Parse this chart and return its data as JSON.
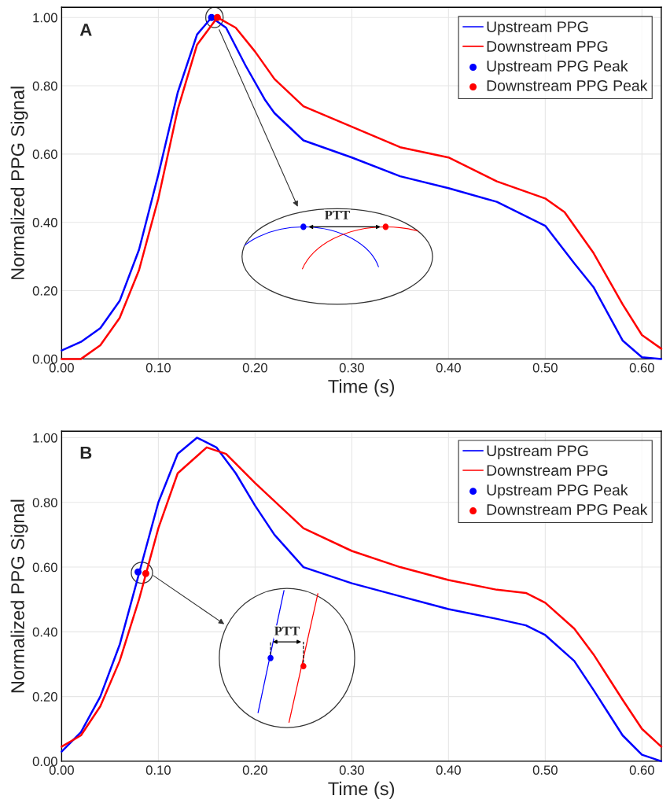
{
  "chart_data": [
    {
      "type": "line",
      "annotations": [
        "A",
        "PTT"
      ],
      "xlabel": "Time (s)",
      "ylabel": "Normalized PPG Signal",
      "xlim": [
        0,
        0.62
      ],
      "ylim": [
        0,
        1.03
      ],
      "xticks": [
        {
          "value": 0,
          "label": "0.00"
        },
        {
          "value": 0.1,
          "label": "0.10"
        },
        {
          "value": 0.2,
          "label": "0.20"
        },
        {
          "value": 0.3,
          "label": "0.30"
        },
        {
          "value": 0.4,
          "label": "0.40"
        },
        {
          "value": 0.5,
          "label": "0.50"
        },
        {
          "value": 0.6,
          "label": "0.60"
        }
      ],
      "yticks": [
        {
          "value": 0,
          "label": "0.00"
        },
        {
          "value": 0.2,
          "label": "0.20"
        },
        {
          "value": 0.4,
          "label": "0.40"
        },
        {
          "value": 0.6,
          "label": "0.60"
        },
        {
          "value": 0.8,
          "label": "0.80"
        },
        {
          "value": 1.0,
          "label": "1.00"
        }
      ],
      "grid": true,
      "legend": "top right",
      "series": [
        {
          "name": "Upstream PPG",
          "color": "#0000ff",
          "x": [
            0,
            0.02,
            0.04,
            0.06,
            0.08,
            0.1,
            0.12,
            0.14,
            0.155,
            0.17,
            0.19,
            0.21,
            0.22,
            0.25,
            0.3,
            0.35,
            0.4,
            0.45,
            0.5,
            0.53,
            0.55,
            0.58,
            0.6,
            0.62
          ],
          "values": [
            0.025,
            0.05,
            0.09,
            0.17,
            0.32,
            0.54,
            0.78,
            0.95,
            1.0,
            0.97,
            0.86,
            0.76,
            0.72,
            0.64,
            0.59,
            0.535,
            0.5,
            0.46,
            0.39,
            0.28,
            0.21,
            0.054,
            0.005,
            0.0
          ]
        },
        {
          "name": "Downstream PPG",
          "color": "#ff0000",
          "x": [
            0,
            0.02,
            0.04,
            0.06,
            0.08,
            0.1,
            0.12,
            0.14,
            0.161,
            0.18,
            0.2,
            0.22,
            0.25,
            0.3,
            0.35,
            0.4,
            0.45,
            0.5,
            0.52,
            0.55,
            0.58,
            0.6,
            0.62
          ],
          "values": [
            0.0,
            0.0,
            0.04,
            0.12,
            0.26,
            0.47,
            0.73,
            0.92,
            1.0,
            0.97,
            0.9,
            0.82,
            0.74,
            0.68,
            0.62,
            0.59,
            0.52,
            0.47,
            0.43,
            0.31,
            0.16,
            0.07,
            0.03
          ]
        },
        {
          "name": "Upstream PPG Peak",
          "type": "scatter",
          "color": "#0000ff",
          "marker": "circle",
          "x": [
            0.155
          ],
          "values": [
            1.0
          ]
        },
        {
          "name": "Downstream PPG Peak",
          "type": "scatter",
          "color": "#ff0000",
          "marker": "circle",
          "x": [
            0.161
          ],
          "values": [
            1.0
          ]
        }
      ]
    },
    {
      "type": "line",
      "annotations": [
        "B",
        "PTT"
      ],
      "xlabel": "Time (s)",
      "ylabel": "Normalized PPG Signal",
      "xlim": [
        0,
        0.62
      ],
      "ylim": [
        0,
        1.02
      ],
      "xticks": [
        {
          "value": 0,
          "label": "0.00"
        },
        {
          "value": 0.1,
          "label": "0.10"
        },
        {
          "value": 0.2,
          "label": "0.20"
        },
        {
          "value": 0.3,
          "label": "0.30"
        },
        {
          "value": 0.4,
          "label": "0.40"
        },
        {
          "value": 0.5,
          "label": "0.50"
        },
        {
          "value": 0.6,
          "label": "0.60"
        }
      ],
      "yticks": [
        {
          "value": 0,
          "label": "0.00"
        },
        {
          "value": 0.2,
          "label": "0.20"
        },
        {
          "value": 0.4,
          "label": "0.40"
        },
        {
          "value": 0.6,
          "label": "0.60"
        },
        {
          "value": 0.8,
          "label": "0.80"
        },
        {
          "value": 1.0,
          "label": "1.00"
        }
      ],
      "grid": true,
      "legend": "top right",
      "series": [
        {
          "name": "Upstream PPG",
          "color": "#0000ff",
          "x": [
            0,
            0.02,
            0.04,
            0.06,
            0.08,
            0.1,
            0.12,
            0.14,
            0.16,
            0.18,
            0.2,
            0.22,
            0.25,
            0.3,
            0.35,
            0.4,
            0.45,
            0.48,
            0.5,
            0.53,
            0.55,
            0.58,
            0.6,
            0.62
          ],
          "values": [
            0.03,
            0.09,
            0.2,
            0.36,
            0.58,
            0.8,
            0.95,
            1.0,
            0.97,
            0.89,
            0.79,
            0.7,
            0.6,
            0.55,
            0.51,
            0.47,
            0.44,
            0.42,
            0.39,
            0.31,
            0.22,
            0.08,
            0.02,
            0.0
          ]
        },
        {
          "name": "Downstream PPG",
          "color": "#ff0000",
          "x": [
            0,
            0.02,
            0.04,
            0.06,
            0.08,
            0.1,
            0.12,
            0.15,
            0.17,
            0.2,
            0.25,
            0.3,
            0.35,
            0.4,
            0.45,
            0.48,
            0.5,
            0.53,
            0.55,
            0.58,
            0.6,
            0.62
          ],
          "values": [
            0.045,
            0.08,
            0.17,
            0.31,
            0.5,
            0.72,
            0.89,
            0.97,
            0.95,
            0.86,
            0.72,
            0.65,
            0.6,
            0.56,
            0.53,
            0.52,
            0.49,
            0.41,
            0.33,
            0.19,
            0.1,
            0.045
          ]
        },
        {
          "name": "Upstream PPG Peak",
          "type": "scatter",
          "color": "#0000ff",
          "marker": "circle",
          "x": [
            0.079
          ],
          "values": [
            0.585
          ]
        },
        {
          "name": "Downstream PPG Peak",
          "type": "scatter",
          "color": "#ff0000",
          "marker": "circle",
          "x": [
            0.087
          ],
          "values": [
            0.58
          ]
        }
      ]
    }
  ]
}
